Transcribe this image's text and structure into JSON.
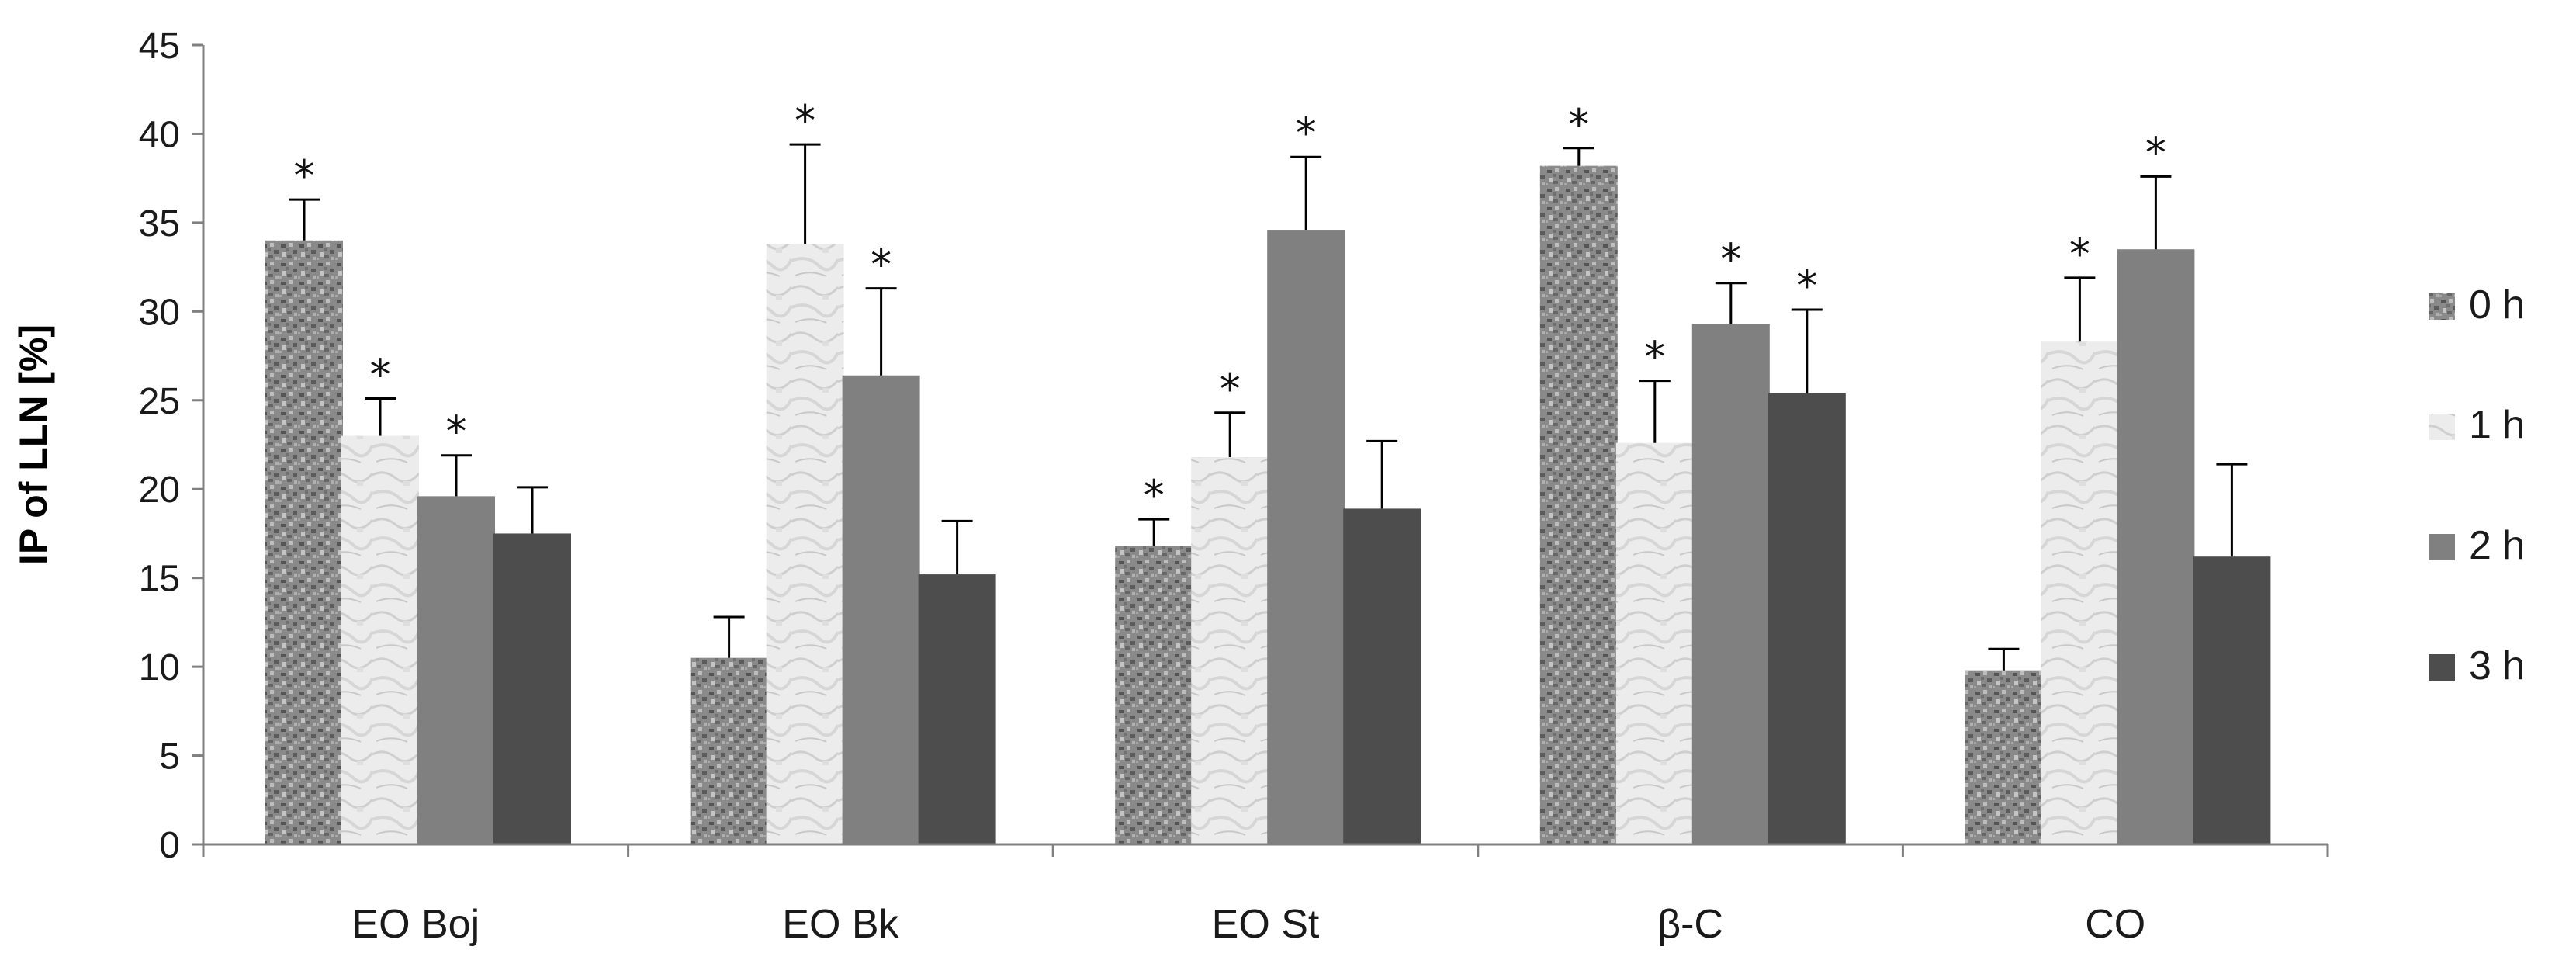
{
  "chart_data": {
    "type": "bar",
    "title": "",
    "xlabel": "",
    "ylabel": "IP of LLN [%]",
    "ylim": [
      0,
      45
    ],
    "yticks": [
      0,
      5,
      10,
      15,
      20,
      25,
      30,
      35,
      40,
      45
    ],
    "categories": [
      "EO Boj",
      "EO Bk",
      "EO St",
      "β-C",
      "CO"
    ],
    "legend_position": "right",
    "significance_marker": "*",
    "series": [
      {
        "name": "0 h",
        "color": "#8c8c8c",
        "pattern": "granite",
        "values": [
          34.0,
          10.5,
          16.8,
          38.2,
          9.8
        ],
        "errors": [
          2.3,
          2.3,
          1.5,
          1.0,
          1.2
        ],
        "significant": [
          true,
          false,
          true,
          true,
          false
        ]
      },
      {
        "name": "1 h",
        "color": "#e6e6e6",
        "pattern": "marble",
        "values": [
          23.0,
          33.8,
          21.8,
          22.6,
          28.3
        ],
        "errors": [
          2.1,
          5.6,
          2.5,
          3.5,
          3.6
        ],
        "significant": [
          true,
          true,
          true,
          true,
          true
        ]
      },
      {
        "name": "2 h",
        "color": "#808080",
        "pattern": "solid",
        "values": [
          19.6,
          26.4,
          34.6,
          29.3,
          33.5
        ],
        "errors": [
          2.3,
          4.9,
          4.1,
          2.3,
          4.1
        ],
        "significant": [
          true,
          true,
          true,
          true,
          true
        ]
      },
      {
        "name": "3 h",
        "color": "#4d4d4d",
        "pattern": "solid",
        "values": [
          17.5,
          15.2,
          18.9,
          25.4,
          16.2
        ],
        "errors": [
          2.6,
          3.0,
          3.8,
          4.7,
          5.2
        ],
        "significant": [
          false,
          false,
          false,
          true,
          false
        ]
      }
    ]
  }
}
